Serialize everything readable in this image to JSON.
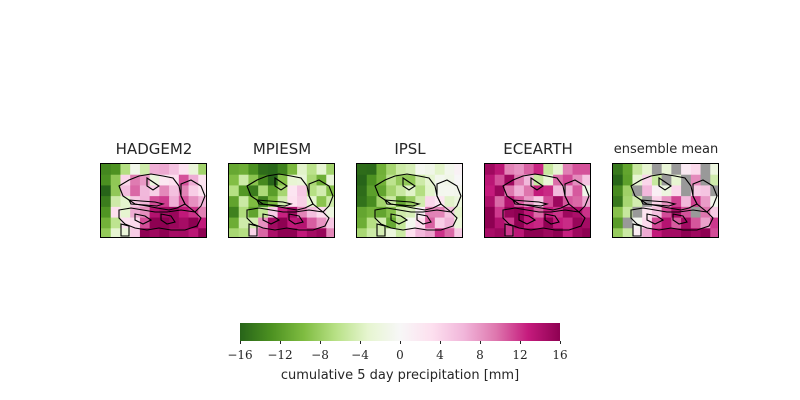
{
  "chart_data": {
    "type": "heatmap",
    "panels": [
      {
        "title": "HADGEM2",
        "seed": 11,
        "bias": [
          [
            -14,
            -14,
            -6,
            0,
            -4,
            6,
            8,
            6,
            2,
            -2,
            -8
          ],
          [
            -14,
            -10,
            4,
            10,
            8,
            -2,
            2,
            4,
            10,
            8,
            2
          ],
          [
            -16,
            -8,
            6,
            10,
            6,
            4,
            8,
            6,
            8,
            6,
            4
          ],
          [
            -14,
            -6,
            -2,
            4,
            6,
            10,
            12,
            6,
            10,
            8,
            6
          ],
          [
            -12,
            2,
            -4,
            6,
            8,
            14,
            14,
            16,
            14,
            12,
            10
          ],
          [
            -10,
            -6,
            2,
            4,
            12,
            16,
            16,
            14,
            16,
            16,
            14
          ],
          [
            -8,
            -4,
            -2,
            6,
            16,
            14,
            16,
            16,
            16,
            14,
            16
          ]
        ]
      },
      {
        "title": "MPIESM",
        "seed": 23,
        "bias": [
          [
            -10,
            -12,
            -14,
            -16,
            -16,
            -14,
            -10,
            -4,
            -6,
            -2,
            -8
          ],
          [
            -8,
            -6,
            -10,
            -14,
            -16,
            -10,
            -4,
            -2,
            -8,
            -12,
            -4
          ],
          [
            -6,
            -12,
            -14,
            -8,
            -12,
            -6,
            2,
            4,
            -6,
            -4,
            -10
          ],
          [
            -12,
            -4,
            -10,
            -14,
            -10,
            -6,
            4,
            6,
            -2,
            -8,
            -6
          ],
          [
            -14,
            -8,
            -12,
            -6,
            4,
            12,
            14,
            10,
            6,
            4,
            -2
          ],
          [
            -10,
            -6,
            -4,
            8,
            14,
            16,
            12,
            14,
            10,
            8,
            6
          ],
          [
            -6,
            -8,
            4,
            10,
            14,
            16,
            16,
            12,
            14,
            16,
            10
          ]
        ]
      },
      {
        "title": "IPSL",
        "seed": 37,
        "bias": [
          [
            -16,
            -16,
            -12,
            -8,
            -6,
            -4,
            -2,
            -2,
            -4,
            -2,
            0
          ],
          [
            -16,
            -14,
            -10,
            -6,
            -8,
            -10,
            -6,
            -4,
            -2,
            -2,
            0
          ],
          [
            -16,
            -12,
            -10,
            -8,
            -6,
            -4,
            -6,
            -4,
            -2,
            -2,
            -2
          ],
          [
            -14,
            -12,
            -8,
            -6,
            -10,
            -8,
            -4,
            4,
            2,
            -2,
            -2
          ],
          [
            -12,
            -10,
            -12,
            -8,
            -6,
            -4,
            2,
            8,
            10,
            6,
            -4
          ],
          [
            -10,
            -8,
            -6,
            -10,
            -6,
            -2,
            4,
            10,
            6,
            8,
            -2
          ],
          [
            -8,
            -6,
            -4,
            -2,
            -4,
            2,
            6,
            8,
            12,
            10,
            4
          ]
        ]
      },
      {
        "title": "ECEARTH",
        "seed": 41,
        "bias": [
          [
            14,
            12,
            10,
            8,
            10,
            12,
            -4,
            -2,
            8,
            10,
            12
          ],
          [
            14,
            12,
            14,
            10,
            6,
            -6,
            -2,
            10,
            12,
            8,
            6
          ],
          [
            12,
            14,
            10,
            6,
            10,
            14,
            12,
            6,
            8,
            10,
            -2
          ],
          [
            14,
            10,
            14,
            12,
            8,
            6,
            10,
            14,
            12,
            10,
            8
          ],
          [
            16,
            12,
            14,
            16,
            12,
            10,
            14,
            12,
            16,
            14,
            12
          ],
          [
            16,
            14,
            12,
            16,
            14,
            12,
            16,
            14,
            12,
            16,
            14
          ],
          [
            14,
            16,
            12,
            14,
            16,
            16,
            14,
            16,
            12,
            14,
            16
          ]
        ]
      },
      {
        "title": "ensemble mean",
        "seed": 53,
        "bias": [
          [
            -14,
            -10,
            -6,
            -2,
            "nan",
            -4,
            "nan",
            2,
            4,
            "nan",
            -2
          ],
          [
            -16,
            -12,
            -2,
            4,
            -4,
            "nan",
            -2,
            "nan",
            8,
            "nan",
            -4
          ],
          [
            -12,
            -8,
            "nan",
            6,
            2,
            -2,
            4,
            "nan",
            6,
            4,
            "nan"
          ],
          [
            -14,
            -6,
            -4,
            "nan",
            4,
            8,
            10,
            6,
            10,
            8,
            -2
          ],
          [
            -10,
            -4,
            "nan",
            2,
            6,
            12,
            14,
            12,
            "nan",
            10,
            6
          ],
          [
            -12,
            "nan",
            -2,
            4,
            10,
            14,
            12,
            14,
            12,
            8,
            12
          ],
          [
            -8,
            -6,
            2,
            6,
            12,
            16,
            14,
            16,
            14,
            16,
            12
          ]
        ]
      }
    ],
    "colorbar": {
      "ticks": [
        "−16",
        "−12",
        "−8",
        "−4",
        "0",
        "4",
        "8",
        "12",
        "16"
      ],
      "tick_values": [
        -16,
        -12,
        -8,
        -4,
        0,
        4,
        8,
        12,
        16
      ],
      "range": [
        -16,
        16
      ],
      "label": "cumulative 5 day precipitation [mm]"
    },
    "colors": {
      "stops": [
        "#276419",
        "#4d9221",
        "#7fbc41",
        "#b8e186",
        "#e6f5d0",
        "#f7f7f7",
        "#fde0ef",
        "#f1b6da",
        "#de77ae",
        "#c51b7d",
        "#8e0152"
      ],
      "missing": "#999999"
    }
  }
}
